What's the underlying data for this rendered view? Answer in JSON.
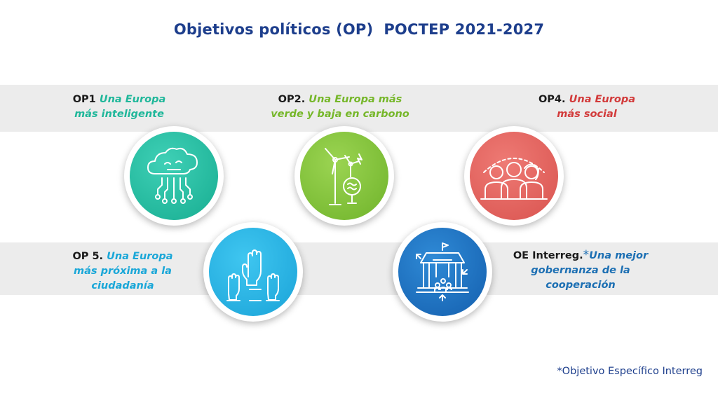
{
  "title": "Objetivos políticos (OP)  POCTEP 2021-2027",
  "objectives": {
    "op1": {
      "prefix": "OP1",
      "line1": "Una Europa",
      "line2": "más inteligente",
      "color": "#1fb79a",
      "icon": "cloud-circuit-icon"
    },
    "op2": {
      "prefix": "OP2.",
      "line1": "Una Europa más",
      "line2": "verde y baja en carbono",
      "color": "#76b72a",
      "icon": "wind-turbine-icon"
    },
    "op4": {
      "prefix": "OP4.",
      "line1": "Una Europa",
      "line2": "más social",
      "color": "#d23a3a",
      "icon": "people-group-icon"
    },
    "op5": {
      "prefix": "OP 5.",
      "line1": "Una Europa",
      "line2": "más próxima a la",
      "line3": "ciudadanía",
      "color": "#1aa7d8",
      "icon": "raised-hands-icon"
    },
    "oe": {
      "prefix": "OE Interreg.",
      "asterisk": "*",
      "line1": "Una mejor",
      "line2": "gobernanza de la",
      "line3": "cooperación",
      "color": "#1c6fb3",
      "icon": "institution-building-icon"
    }
  },
  "footnote": "*Objetivo Específico Interreg"
}
